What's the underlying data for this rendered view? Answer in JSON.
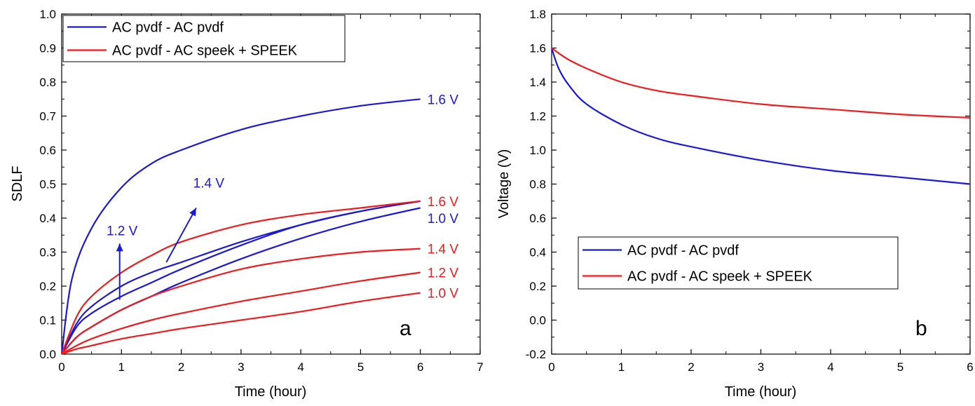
{
  "chart_data": [
    {
      "type": "line",
      "panel_label": "a",
      "xlabel": "Time (hour)",
      "ylabel": "SDLF",
      "xlim": [
        0,
        7
      ],
      "ylim": [
        0.0,
        1.0
      ],
      "xticks": [
        "0",
        "1",
        "2",
        "3",
        "4",
        "5",
        "6",
        "7"
      ],
      "yticks": [
        "0.0",
        "0.1",
        "0.2",
        "0.3",
        "0.4",
        "0.5",
        "0.6",
        "0.7",
        "0.8",
        "0.9",
        "1.0"
      ],
      "grid": false,
      "legend_position": "top-left",
      "legend": [
        {
          "label": "AC pvdf - AC pvdf",
          "color": "#1a1ad6"
        },
        {
          "label": "AC pvdf - AC speek + SPEEK",
          "color": "#ee1c1c"
        }
      ],
      "series": [
        {
          "group": "AC pvdf - AC pvdf",
          "voltage": "1.6 V",
          "color": "#1a1ad6",
          "x": [
            0,
            0.17,
            0.5,
            1,
            1.5,
            2,
            3,
            4,
            5,
            6
          ],
          "y": [
            0,
            0.22,
            0.37,
            0.49,
            0.56,
            0.6,
            0.66,
            0.7,
            0.73,
            0.75
          ]
        },
        {
          "group": "AC pvdf - AC pvdf",
          "voltage": "1.4 V",
          "color": "#1a1ad6",
          "x": [
            0,
            0.25,
            0.5,
            1,
            1.5,
            2,
            3,
            4,
            5,
            6
          ],
          "y": [
            0,
            0.09,
            0.14,
            0.2,
            0.24,
            0.27,
            0.33,
            0.38,
            0.42,
            0.45
          ]
        },
        {
          "group": "AC pvdf - AC pvdf",
          "voltage": "1.2 V",
          "color": "#1a1ad6",
          "x": [
            0,
            0.25,
            0.5,
            1,
            1.5,
            2,
            3,
            4,
            5,
            6
          ],
          "y": [
            0,
            0.08,
            0.12,
            0.17,
            0.21,
            0.25,
            0.32,
            0.38,
            0.42,
            0.45
          ]
        },
        {
          "group": "AC pvdf - AC pvdf",
          "voltage": "1.0 V",
          "color": "#1a1ad6",
          "x": [
            0,
            0.25,
            0.5,
            1,
            1.5,
            2,
            3,
            4,
            5,
            6
          ],
          "y": [
            0,
            0.05,
            0.08,
            0.13,
            0.17,
            0.21,
            0.28,
            0.34,
            0.39,
            0.43
          ]
        },
        {
          "group": "AC pvdf - AC speek + SPEEK",
          "voltage": "1.6 V",
          "color": "#ee1c1c",
          "x": [
            0,
            0.25,
            0.5,
            1,
            1.5,
            2,
            3,
            4,
            5,
            6
          ],
          "y": [
            0,
            0.11,
            0.17,
            0.24,
            0.29,
            0.33,
            0.38,
            0.41,
            0.43,
            0.45
          ]
        },
        {
          "group": "AC pvdf - AC speek + SPEEK",
          "voltage": "1.4 V",
          "color": "#ee1c1c",
          "x": [
            0,
            0.25,
            0.5,
            1,
            1.5,
            2,
            3,
            4,
            5,
            6
          ],
          "y": [
            0,
            0.05,
            0.08,
            0.13,
            0.17,
            0.2,
            0.25,
            0.28,
            0.3,
            0.31
          ]
        },
        {
          "group": "AC pvdf - AC speek + SPEEK",
          "voltage": "1.2 V",
          "color": "#ee1c1c",
          "x": [
            0,
            0.25,
            0.5,
            1,
            1.5,
            2,
            3,
            4,
            5,
            6
          ],
          "y": [
            0,
            0.025,
            0.045,
            0.075,
            0.1,
            0.12,
            0.155,
            0.185,
            0.215,
            0.24
          ]
        },
        {
          "group": "AC pvdf - AC speek + SPEEK",
          "voltage": "1.0 V",
          "color": "#ee1c1c",
          "x": [
            0,
            0.25,
            0.5,
            1,
            1.5,
            2,
            3,
            4,
            5,
            6
          ],
          "y": [
            0,
            0.015,
            0.025,
            0.045,
            0.06,
            0.075,
            0.1,
            0.125,
            0.155,
            0.18
          ]
        }
      ],
      "end_labels": [
        {
          "text": "1.6 V",
          "color": "#1a1ad6",
          "x": 6,
          "y": 0.75
        },
        {
          "text": "1.6 V",
          "color": "#ee1c1c",
          "x": 6,
          "y": 0.45
        },
        {
          "text": "1.0 V",
          "color": "#1a1ad6",
          "x": 6,
          "y": 0.4
        },
        {
          "text": "1.4 V",
          "color": "#ee1c1c",
          "x": 6,
          "y": 0.31
        },
        {
          "text": "1.2 V",
          "color": "#ee1c1c",
          "x": 6,
          "y": 0.24
        },
        {
          "text": "1.0 V",
          "color": "#ee1c1c",
          "x": 6,
          "y": 0.18
        }
      ],
      "arrow_annotations": [
        {
          "text": "1.4 V",
          "color": "#1a1ad6",
          "from": [
            1.75,
            0.27
          ],
          "to": [
            2.25,
            0.43
          ],
          "text_at": [
            2.2,
            0.49
          ]
        },
        {
          "text": "1.2 V",
          "color": "#1a1ad6",
          "from": [
            0.97,
            0.16
          ],
          "to": [
            0.97,
            0.325
          ],
          "text_at": [
            0.75,
            0.35
          ]
        }
      ]
    },
    {
      "type": "line",
      "panel_label": "b",
      "xlabel": "Time (hour)",
      "ylabel": "Voltage (V)",
      "xlim": [
        0,
        6
      ],
      "ylim": [
        -0.2,
        1.8
      ],
      "xticks": [
        "0",
        "1",
        "2",
        "3",
        "4",
        "5",
        "6"
      ],
      "yticks": [
        "-0.2",
        "0.0",
        "0.2",
        "0.4",
        "0.6",
        "0.8",
        "1.0",
        "1.2",
        "1.4",
        "1.6",
        "1.8"
      ],
      "grid": false,
      "legend_position": "center-left",
      "legend": [
        {
          "label": "AC pvdf - AC pvdf",
          "color": "#1a1ad6"
        },
        {
          "label": "AC pvdf - AC speek + SPEEK",
          "color": "#ee1c1c"
        }
      ],
      "series": [
        {
          "name": "AC pvdf - AC pvdf",
          "color": "#1a1ad6",
          "x": [
            0,
            0.1,
            0.25,
            0.5,
            1,
            1.5,
            2,
            3,
            4,
            5,
            6
          ],
          "y": [
            1.6,
            1.48,
            1.38,
            1.27,
            1.15,
            1.07,
            1.02,
            0.94,
            0.88,
            0.84,
            0.8
          ]
        },
        {
          "name": "AC pvdf - AC speek + SPEEK",
          "color": "#ee1c1c",
          "x": [
            0,
            0.1,
            0.25,
            0.5,
            1,
            1.5,
            2,
            3,
            4,
            5,
            6
          ],
          "y": [
            1.6,
            1.57,
            1.53,
            1.48,
            1.4,
            1.35,
            1.32,
            1.27,
            1.24,
            1.21,
            1.19
          ]
        }
      ]
    }
  ]
}
